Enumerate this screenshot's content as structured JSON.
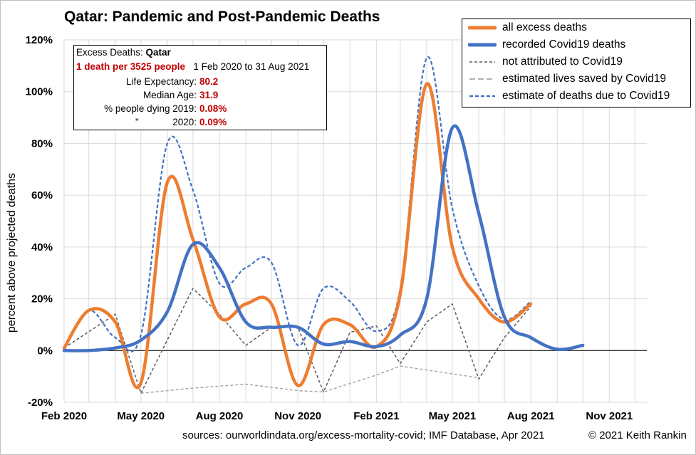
{
  "title": {
    "country": "Qatar",
    "rest": ": Pandemic and Post-Pandemic Deaths"
  },
  "infobox": {
    "heading_prefix": "Excess Deaths: ",
    "heading_country": "Qatar",
    "rate": "1 death per 3525 people",
    "period": "1 Feb 2020 to 31 Aug 2021",
    "rows": [
      {
        "label": "Life Expectancy:",
        "value": "80.2"
      },
      {
        "label": "Median Age:",
        "value": "31.9"
      },
      {
        "label": "% people dying 2019:",
        "value": "0.08%"
      },
      {
        "label": "\"",
        "label2": "2020:",
        "value": "0.09%"
      }
    ]
  },
  "footer": {
    "sources": "sources:  ourworldindata.org/excess-mortality-covid;  IMF Database, Apr 2021",
    "copyright": "© 2021 Keith Rankin"
  },
  "chart_data": {
    "type": "line",
    "title": "Qatar: Pandemic and Post-Pandemic Deaths",
    "ylabel": "percent above projected deaths",
    "xlabel": "",
    "x_range": [
      "2020-02-01",
      "2021-12-15"
    ],
    "xtick_labels": [
      "Feb 2020",
      "May 2020",
      "Aug 2020",
      "Nov 2020",
      "Feb 2021",
      "May 2021",
      "Aug 2021",
      "Nov 2021"
    ],
    "xtick_dates": [
      "2020-02-01",
      "2020-05-01",
      "2020-08-01",
      "2020-11-01",
      "2021-02-01",
      "2021-05-01",
      "2021-08-01",
      "2021-11-01"
    ],
    "ylim": [
      -20,
      120
    ],
    "yticks": [
      -20,
      0,
      20,
      40,
      60,
      80,
      100,
      120
    ],
    "ytick_labels": [
      "-20%",
      "0%",
      "20%",
      "40%",
      "60%",
      "80%",
      "100%",
      "120%"
    ],
    "grid": true,
    "legend_position": "top-right",
    "series": [
      {
        "name": "all excess deaths",
        "color": "#ed7d31",
        "style": "solid-thick",
        "smooth": true,
        "x": [
          "2020-02-01",
          "2020-03-01",
          "2020-04-01",
          "2020-05-01",
          "2020-06-01",
          "2020-07-01",
          "2020-08-01",
          "2020-09-01",
          "2020-10-01",
          "2020-11-01",
          "2020-12-01",
          "2021-01-01",
          "2021-02-01",
          "2021-03-01",
          "2021-04-01",
          "2021-05-01",
          "2021-06-01",
          "2021-07-01",
          "2021-08-01"
        ],
        "y": [
          1,
          15.5,
          11,
          -12.5,
          65,
          43,
          13,
          18,
          18,
          -13.5,
          10,
          10,
          1.5,
          22,
          103,
          40,
          20,
          11,
          18
        ]
      },
      {
        "name": "recorded Covid19 deaths",
        "color": "#4472c4",
        "style": "solid-thick",
        "smooth": true,
        "x": [
          "2020-02-01",
          "2020-03-01",
          "2020-04-01",
          "2020-05-01",
          "2020-06-01",
          "2020-07-01",
          "2020-08-01",
          "2020-09-01",
          "2020-10-01",
          "2020-11-01",
          "2020-12-01",
          "2021-01-01",
          "2021-02-01",
          "2021-03-01",
          "2021-04-01",
          "2021-05-01",
          "2021-06-01",
          "2021-07-01",
          "2021-08-01",
          "2021-09-01",
          "2021-10-01"
        ],
        "y": [
          0,
          0,
          1,
          4,
          15,
          41,
          32,
          11,
          9,
          9,
          2.5,
          3.5,
          1.5,
          6,
          20,
          86,
          53,
          13,
          5,
          0.5,
          2
        ]
      },
      {
        "name": "not attributed to Covid19",
        "color": "#595959",
        "style": "dash-thin",
        "smooth": false,
        "x": [
          "2020-02-01",
          "2020-04-01",
          "2020-05-01",
          "2020-07-01",
          "2020-08-01",
          "2020-09-01",
          "2020-10-01",
          "2020-11-01",
          "2020-12-01",
          "2021-01-01",
          "2021-02-01",
          "2021-03-01",
          "2021-04-01",
          "2021-05-01",
          "2021-06-01",
          "2021-07-01",
          "2021-08-01"
        ],
        "y": [
          1,
          14,
          -16.5,
          24,
          14,
          2,
          9,
          9,
          -16,
          7,
          9.5,
          -5,
          11,
          18,
          -11,
          5,
          17
        ]
      },
      {
        "name": "estimated lives saved by Covid19",
        "color": "#a6a6a6",
        "style": "dash-thin",
        "smooth": false,
        "x": [
          "2020-05-01",
          "2020-07-01",
          "2020-09-01",
          "2020-11-01",
          "2020-12-01",
          "2021-02-01",
          "2021-03-01",
          "2021-05-01",
          "2021-06-01"
        ],
        "y": [
          -16.5,
          -14.5,
          -13,
          -15.5,
          -16,
          -9.5,
          -6,
          -9,
          -10.5
        ]
      },
      {
        "name": "estimate of deaths due to Covid19",
        "color": "#4472c4",
        "style": "dash-thick",
        "smooth": true,
        "x": [
          "2020-02-01",
          "2020-03-01",
          "2020-04-01",
          "2020-05-01",
          "2020-06-01",
          "2020-07-01",
          "2020-08-01",
          "2020-09-01",
          "2020-10-01",
          "2020-11-01",
          "2020-12-01",
          "2021-01-01",
          "2021-02-01",
          "2021-03-01",
          "2021-04-01",
          "2021-05-01",
          "2021-06-01",
          "2021-07-01",
          "2021-08-01"
        ],
        "y": [
          0,
          15.5,
          5,
          6,
          80,
          62,
          26,
          32,
          34,
          2,
          24,
          19,
          7.5,
          24,
          113,
          55,
          25,
          12,
          19
        ]
      }
    ]
  }
}
